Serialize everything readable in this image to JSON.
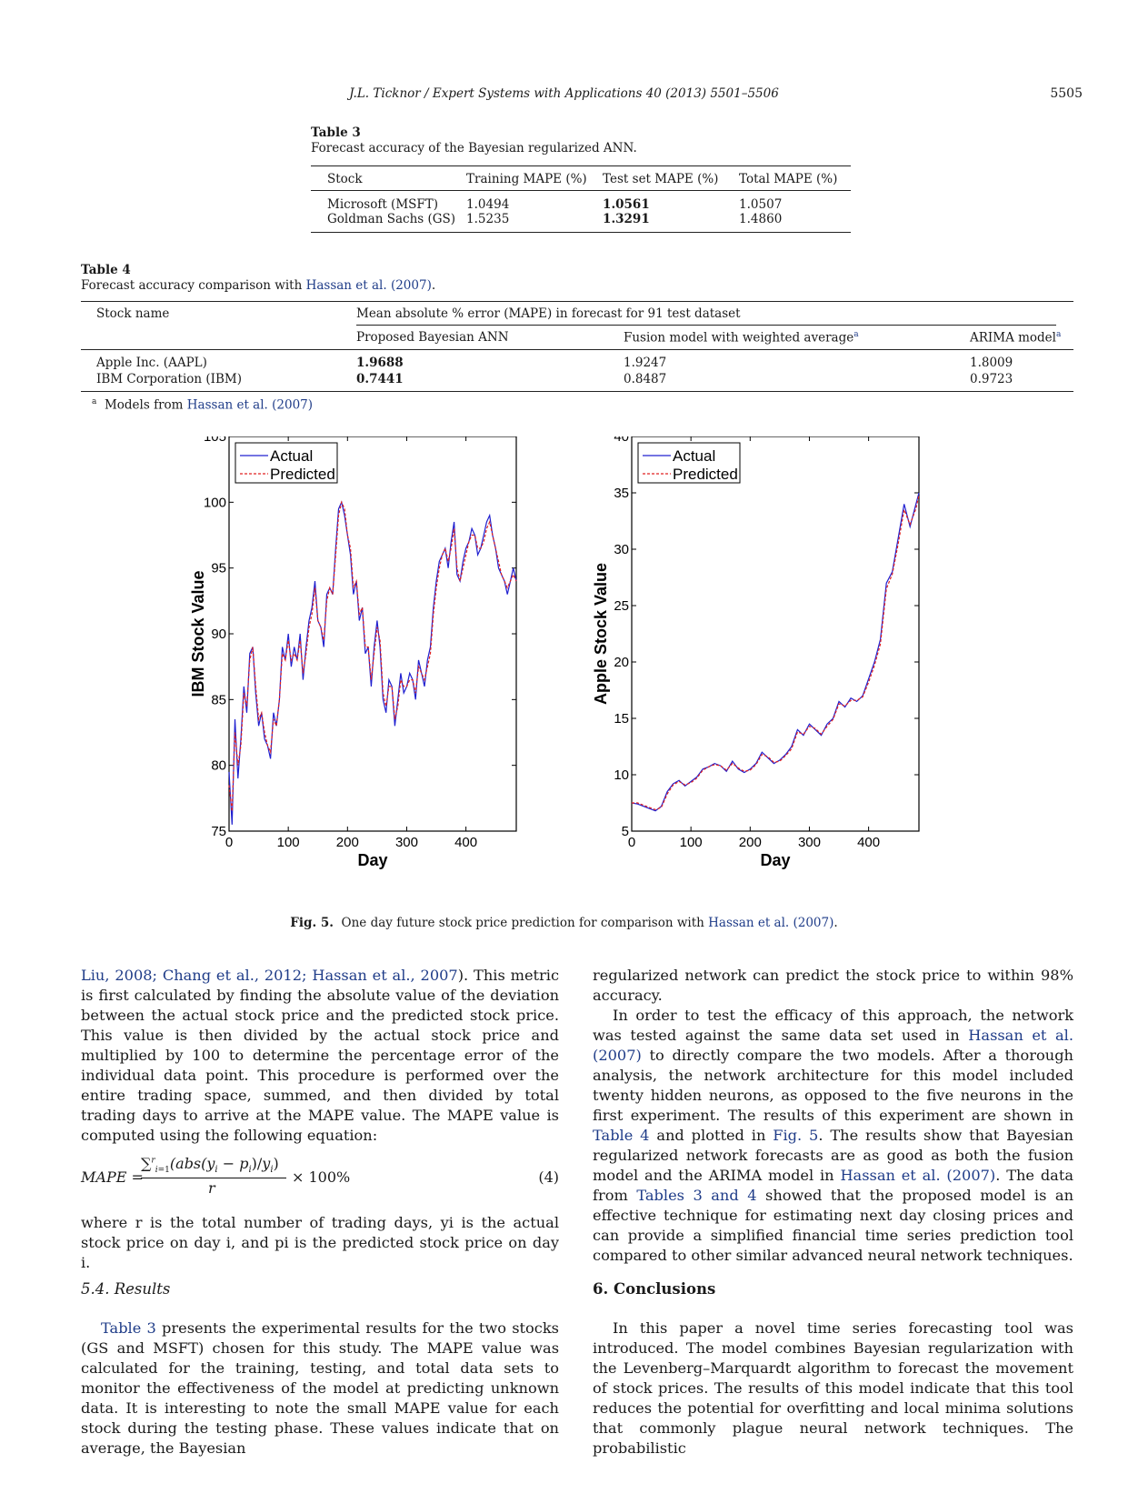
{
  "header": {
    "running_head": "J.L. Ticknor / Expert Systems with Applications 40 (2013) 5501–5506",
    "page_number": "5505"
  },
  "table3": {
    "label": "Table 3",
    "caption": "Forecast accuracy of the Bayesian regularized ANN.",
    "columns": [
      "Stock",
      "Training MAPE (%)",
      "Test set MAPE (%)",
      "Total MAPE (%)"
    ],
    "rows": [
      [
        "Microsoft (MSFT)",
        "1.0494",
        "1.0561",
        "1.0507"
      ],
      [
        "Goldman Sachs (GS)",
        "1.5235",
        "1.3291",
        "1.4860"
      ]
    ]
  },
  "table4": {
    "label": "Table 4",
    "caption_prefix": "Forecast accuracy comparison with ",
    "caption_link": "Hassan et al. (2007)",
    "caption_suffix": ".",
    "col_stock": "Stock name",
    "group_header": "Mean absolute % error (MAPE) in forecast for 91 test dataset",
    "sub_cols": [
      "Proposed Bayesian ANN",
      "Fusion model with weighted average",
      "ARIMA model"
    ],
    "sup": "a",
    "rows": [
      [
        "Apple Inc. (AAPL)",
        "1.9688",
        "1.9247",
        "1.8009"
      ],
      [
        "IBM Corporation (IBM)",
        "0.7441",
        "0.8487",
        "0.9723"
      ]
    ],
    "footnote_mark": "a",
    "footnote_text": "Models from ",
    "footnote_link": "Hassan et al. (2007)"
  },
  "chart_data": [
    {
      "type": "line",
      "xlabel": "Day",
      "ylabel": "IBM Stock Value",
      "xlim": [
        0,
        485
      ],
      "ylim": [
        75,
        105
      ],
      "xticks": [
        "0",
        "100",
        "200",
        "300",
        "400"
      ],
      "yticks": [
        "75",
        "80",
        "85",
        "90",
        "95",
        "100",
        "105"
      ],
      "legend": "top-left",
      "grid": false,
      "series": [
        {
          "name": "Actual",
          "color": "#2020d0",
          "style": "solid"
        },
        {
          "name": "Predicted",
          "color": "#e02020",
          "style": "dashed"
        }
      ],
      "x": [
        0,
        5,
        10,
        15,
        20,
        25,
        30,
        35,
        40,
        45,
        50,
        55,
        60,
        65,
        70,
        75,
        80,
        85,
        90,
        95,
        100,
        105,
        110,
        115,
        120,
        125,
        130,
        135,
        140,
        145,
        150,
        155,
        160,
        165,
        170,
        175,
        180,
        185,
        190,
        195,
        200,
        205,
        210,
        215,
        220,
        225,
        230,
        235,
        240,
        245,
        250,
        255,
        260,
        265,
        270,
        275,
        280,
        285,
        290,
        295,
        300,
        305,
        310,
        315,
        320,
        325,
        330,
        335,
        340,
        345,
        350,
        355,
        360,
        365,
        370,
        375,
        380,
        385,
        390,
        395,
        400,
        405,
        410,
        415,
        420,
        425,
        430,
        435,
        440,
        445,
        450,
        455,
        460,
        465,
        470,
        475,
        480,
        485
      ],
      "actual": [
        79.5,
        75.5,
        83.5,
        79,
        82,
        86,
        84,
        88.5,
        89,
        85.5,
        83,
        84,
        82,
        81.5,
        80.5,
        84,
        83,
        85,
        89,
        88,
        90,
        87.5,
        89,
        88,
        90,
        86.5,
        89,
        91,
        92,
        94,
        91,
        90.5,
        89,
        93,
        93.5,
        93,
        96.5,
        99.5,
        100,
        99,
        97.5,
        96,
        93,
        94,
        91,
        92,
        88.5,
        89,
        86,
        89,
        91,
        89,
        85,
        84,
        86.5,
        86,
        83,
        85,
        87,
        85.5,
        86,
        87,
        86.5,
        85,
        88,
        87,
        86,
        88,
        89,
        92,
        94,
        95.5,
        96,
        96.5,
        95,
        97,
        98.5,
        94.5,
        94,
        95.5,
        96.5,
        97,
        98,
        97.5,
        96,
        96.5,
        97.5,
        98.5,
        99,
        97.5,
        96.5,
        95,
        94.5,
        94,
        93,
        94,
        95,
        94
      ],
      "predicted": [
        78.5,
        76.5,
        82.5,
        80,
        81.5,
        85.5,
        84.5,
        88,
        89,
        86,
        83.5,
        84,
        82.5,
        81.5,
        81,
        83.5,
        83,
        85,
        88.5,
        88,
        89.5,
        88,
        88.5,
        88,
        89.5,
        87,
        88.5,
        90.5,
        91.5,
        93.5,
        91,
        90.5,
        89.5,
        92.5,
        93.5,
        93,
        96,
        99,
        100,
        99.5,
        97.5,
        96.5,
        93.5,
        94,
        91.5,
        92,
        89,
        89,
        86.5,
        88.5,
        90.5,
        89.5,
        85.5,
        84.5,
        86,
        86,
        83.5,
        84.5,
        86.5,
        86,
        86,
        86.5,
        86.5,
        85.5,
        87.5,
        87,
        86.5,
        87.5,
        88.5,
        91.5,
        93.5,
        95,
        96,
        96.5,
        95.5,
        96.5,
        98,
        95,
        94,
        95,
        96,
        97,
        97.5,
        97.5,
        96.5,
        96.5,
        97,
        98,
        98.5,
        97.5,
        96.5,
        95.5,
        94.5,
        94,
        93.5,
        94,
        94.5,
        94
      ]
    },
    {
      "type": "line",
      "xlabel": "Day",
      "ylabel": "Apple Stock Value",
      "xlim": [
        0,
        485
      ],
      "ylim": [
        5,
        40
      ],
      "xticks": [
        "0",
        "100",
        "200",
        "300",
        "400"
      ],
      "yticks": [
        "5",
        "10",
        "15",
        "20",
        "25",
        "30",
        "35",
        "40"
      ],
      "legend": "top-left",
      "grid": false,
      "series": [
        {
          "name": "Actual",
          "color": "#2020d0",
          "style": "solid"
        },
        {
          "name": "Predicted",
          "color": "#e02020",
          "style": "dashed"
        }
      ],
      "x": [
        0,
        10,
        20,
        30,
        40,
        50,
        60,
        70,
        80,
        90,
        100,
        110,
        120,
        130,
        140,
        150,
        160,
        170,
        180,
        190,
        200,
        210,
        220,
        230,
        240,
        250,
        260,
        270,
        280,
        290,
        300,
        310,
        320,
        330,
        340,
        350,
        360,
        370,
        380,
        390,
        400,
        410,
        420,
        430,
        440,
        450,
        460,
        470,
        480,
        485
      ],
      "actual": [
        7.5,
        7.4,
        7.2,
        7.0,
        6.8,
        7.2,
        8.5,
        9.2,
        9.5,
        9.0,
        9.4,
        9.8,
        10.5,
        10.7,
        11.0,
        10.8,
        10.3,
        11.2,
        10.5,
        10.2,
        10.5,
        11.0,
        12.0,
        11.5,
        11.0,
        11.3,
        11.8,
        12.5,
        14.0,
        13.5,
        14.5,
        14.0,
        13.5,
        14.5,
        15.0,
        16.5,
        16.0,
        16.8,
        16.5,
        17.0,
        18.5,
        20.0,
        22.0,
        27.0,
        28.0,
        31.0,
        34.0,
        32.0,
        34.0,
        35.0
      ],
      "predicted": [
        7.5,
        7.5,
        7.3,
        7.1,
        6.9,
        7.1,
        8.3,
        9.1,
        9.4,
        9.1,
        9.3,
        9.7,
        10.4,
        10.7,
        10.9,
        10.8,
        10.4,
        11.0,
        10.6,
        10.3,
        10.4,
        10.9,
        11.8,
        11.6,
        11.1,
        11.2,
        11.7,
        12.3,
        13.8,
        13.6,
        14.3,
        14.1,
        13.6,
        14.3,
        14.9,
        16.3,
        16.1,
        16.6,
        16.6,
        16.9,
        18.2,
        19.7,
        21.6,
        26.5,
        27.8,
        30.5,
        33.5,
        32.2,
        33.6,
        34.8
      ]
    }
  ],
  "figure": {
    "label": "Fig. 5.",
    "caption": "One day future stock price prediction for comparison with ",
    "caption_link": "Hassan et al. (2007)",
    "caption_end": "."
  },
  "left_col": {
    "p1_link": "Liu, 2008; Chang et al., 2012; Hassan et al., 2007",
    "p1_text": "). This metric is first calculated by finding the absolute value of the deviation between the actual stock price and the predicted stock price. This value is then divided by the actual stock price and multiplied by 100 to determine the percentage error of the individual data point. This procedure is performed over the entire trading space, summed, and then divided by total trading days to arrive at the MAPE value. The MAPE value is computed using the following equation:",
    "eq_lhs": "MAPE =",
    "eq_num": "∑",
    "eq_num_rest": "(abs(y",
    "eq_den": "r",
    "eq_rhs": "× 100%",
    "eq_number": "(4)",
    "p2": "where r is the total number of trading days, yi is the actual stock price on day i, and pi is the predicted stock price on day i.",
    "section_54": "5.4. Results",
    "p3_link": "Table 3",
    "p3_text": " presents the experimental results for the two stocks (GS and MSFT) chosen for this study. The MAPE value was calculated for the training, testing, and total data sets to monitor the effectiveness of the model at predicting unknown data. It is interesting to note the small MAPE value for each stock during the testing phase. These values indicate that on average, the Bayesian"
  },
  "right_col": {
    "p1": "regularized network can predict the stock price to within 98% accuracy.",
    "p2_a": "In order to test the efficacy of this approach, the network was tested against the same data set used in ",
    "p2_link1": "Hassan et al. (2007)",
    "p2_b": " to directly compare the two models. After a thorough analysis, the network architecture for this model included twenty hidden neurons, as opposed to the five neurons in the first experiment. The results of this experiment are shown in ",
    "p2_link2": "Table 4",
    "p2_c": " and plotted in ",
    "p2_link3": "Fig. 5",
    "p2_d": ". The results show that Bayesian regularized network forecasts are as good as both the fusion model and the ARIMA model in ",
    "p2_link4": "Hassan et al. (2007)",
    "p2_e": ". The data from ",
    "p2_link5": "Tables 3 and 4",
    "p2_f": " showed that the proposed model is an effective technique for estimating next day closing prices and can provide a simplified financial time series prediction tool compared to other similar advanced neural network techniques.",
    "section_6": "6. Conclusions",
    "p3": "In this paper a novel time series forecasting tool was introduced. The model combines Bayesian regularization with the Levenberg–Marquardt algorithm to forecast the movement of stock prices. The results of this model indicate that this tool reduces the potential for overfitting and local minima solutions that commonly plague neural network techniques. The probabilistic"
  }
}
